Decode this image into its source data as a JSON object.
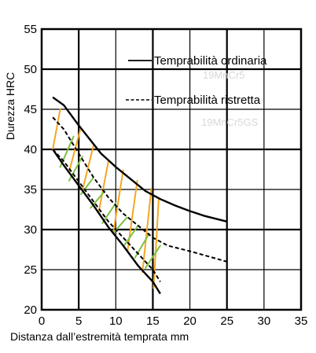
{
  "chart_data": {
    "type": "line",
    "title": "",
    "xlabel": "Distanza dall’estremità temprata mm",
    "ylabel": "Durezza HRC",
    "xlim": [
      0,
      35
    ],
    "ylim": [
      20,
      55
    ],
    "x_ticks": [
      0,
      5,
      10,
      15,
      20,
      25,
      30,
      35
    ],
    "y_ticks": [
      20,
      25,
      30,
      35,
      40,
      45,
      50,
      55
    ],
    "grid": true,
    "legend_position": "top-right",
    "legend": [
      {
        "label": "Temprabilità ordinaria",
        "style": "solid"
      },
      {
        "label": "Temprabilità ristretta",
        "style": "dashed"
      }
    ],
    "background_texts": [
      "19MnCr5",
      "19MnCr5GS"
    ],
    "series": [
      {
        "line": "solid",
        "color": "#000000",
        "points": [
          [
            1.5,
            46.5
          ],
          [
            3,
            45.5
          ],
          [
            5,
            43
          ],
          [
            8,
            39.5
          ],
          [
            10,
            37.8
          ],
          [
            12,
            36.3
          ],
          [
            14,
            34.8
          ],
          [
            16,
            33.8
          ],
          [
            18,
            33
          ],
          [
            20,
            32.3
          ],
          [
            22,
            31.7
          ],
          [
            25,
            31
          ]
        ]
      },
      {
        "line": "solid",
        "color": "#000000",
        "points": [
          [
            1.5,
            40
          ],
          [
            3,
            38
          ],
          [
            5,
            35.5
          ],
          [
            7,
            33
          ],
          [
            9,
            30.3
          ],
          [
            11,
            28
          ],
          [
            13,
            25.5
          ],
          [
            15,
            23.5
          ],
          [
            16,
            22
          ]
        ]
      },
      {
        "line": "dashed",
        "color": "#000000",
        "points": [
          [
            1.5,
            44
          ],
          [
            3,
            42.5
          ],
          [
            5,
            39.5
          ],
          [
            7,
            36.5
          ],
          [
            9,
            34
          ],
          [
            11,
            32
          ],
          [
            13,
            30.5
          ],
          [
            15,
            29
          ],
          [
            17,
            28
          ],
          [
            20,
            27.3
          ],
          [
            25,
            26
          ]
        ]
      },
      {
        "line": "dashed",
        "color": "#000000",
        "points": [
          [
            1.5,
            40
          ],
          [
            3,
            38.5
          ],
          [
            5,
            36
          ],
          [
            7,
            33.5
          ],
          [
            9,
            31
          ],
          [
            11,
            29
          ],
          [
            13,
            27
          ],
          [
            15,
            25
          ],
          [
            16,
            23.5
          ]
        ]
      }
    ],
    "hatch": {
      "orange": {
        "color": "#f5a623",
        "segments": [
          [
            [
              1.5,
              40
            ],
            [
              2.5,
              45
            ]
          ],
          [
            [
              3.7,
              37.2
            ],
            [
              5.2,
              42.4
            ]
          ],
          [
            [
              5.5,
              34.9
            ],
            [
              7,
              40.5
            ]
          ],
          [
            [
              7.7,
              32.2
            ],
            [
              9,
              38.5
            ]
          ],
          [
            [
              9.7,
              29.8
            ],
            [
              11,
              37.4
            ]
          ],
          [
            [
              11.6,
              27.4
            ],
            [
              12.9,
              36.1
            ]
          ],
          [
            [
              13.6,
              24.7
            ],
            [
              14.8,
              35.1
            ]
          ],
          [
            [
              15.1,
              22.7
            ],
            [
              15.8,
              33.9
            ]
          ]
        ]
      },
      "green": {
        "color": "#7dc242",
        "segments": [
          [
            [
              2.5,
              37.8
            ],
            [
              4.3,
              41.6
            ]
          ],
          [
            [
              3.7,
              36.1
            ],
            [
              5.5,
              39.1
            ]
          ],
          [
            [
              5.3,
              34.4
            ],
            [
              7,
              36.5
            ]
          ],
          [
            [
              6.6,
              32.7
            ],
            [
              8.5,
              34.8
            ]
          ],
          [
            [
              8.2,
              30.8
            ],
            [
              10,
              33.3
            ]
          ],
          [
            [
              9.7,
              29.6
            ],
            [
              11.5,
              31.5
            ]
          ],
          [
            [
              11.2,
              28.1
            ],
            [
              13,
              30.5
            ]
          ],
          [
            [
              12.6,
              26.5
            ],
            [
              14.5,
              29.5
            ]
          ],
          [
            [
              14,
              25.2
            ],
            [
              16,
              28
            ]
          ]
        ]
      }
    }
  }
}
